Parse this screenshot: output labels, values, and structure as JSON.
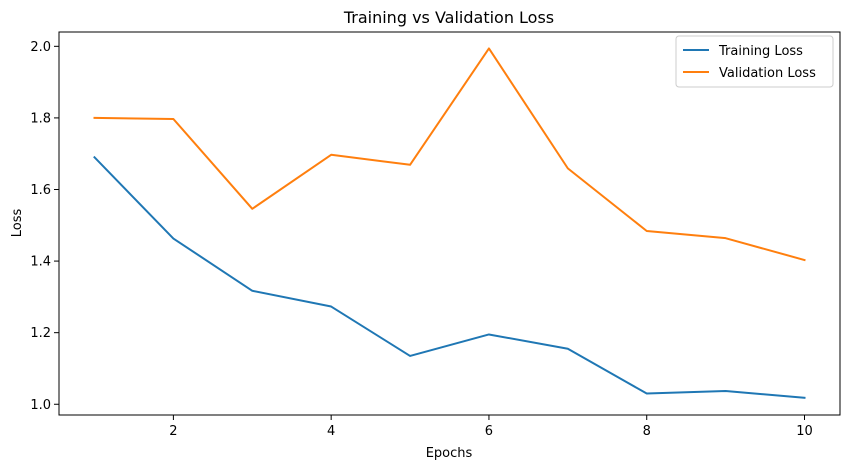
{
  "chart_data": {
    "type": "line",
    "title": "Training vs Validation Loss",
    "xlabel": "Epochs",
    "ylabel": "Loss",
    "x": [
      1,
      2,
      3,
      4,
      5,
      6,
      7,
      8,
      9,
      10
    ],
    "xlim": [
      0.55,
      10.45
    ],
    "ylim": [
      0.97,
      2.04
    ],
    "xticks": [
      2,
      4,
      6,
      8,
      10
    ],
    "xtick_labels": [
      "2",
      "4",
      "6",
      "8",
      "10"
    ],
    "yticks": [
      1.0,
      1.2,
      1.4,
      1.6,
      1.8,
      2.0
    ],
    "ytick_labels": [
      "1.0",
      "1.2",
      "1.4",
      "1.6",
      "1.8",
      "2.0"
    ],
    "grid": false,
    "legend_position": "top-right",
    "series": [
      {
        "name": "Training Loss",
        "color": "#1f77b4",
        "values": [
          1.69,
          1.463,
          1.317,
          1.273,
          1.135,
          1.195,
          1.155,
          1.03,
          1.037,
          1.018
        ]
      },
      {
        "name": "Validation Loss",
        "color": "#ff7f0e",
        "values": [
          1.8,
          1.797,
          1.546,
          1.697,
          1.669,
          1.994,
          1.659,
          1.484,
          1.464,
          1.403
        ]
      }
    ]
  }
}
